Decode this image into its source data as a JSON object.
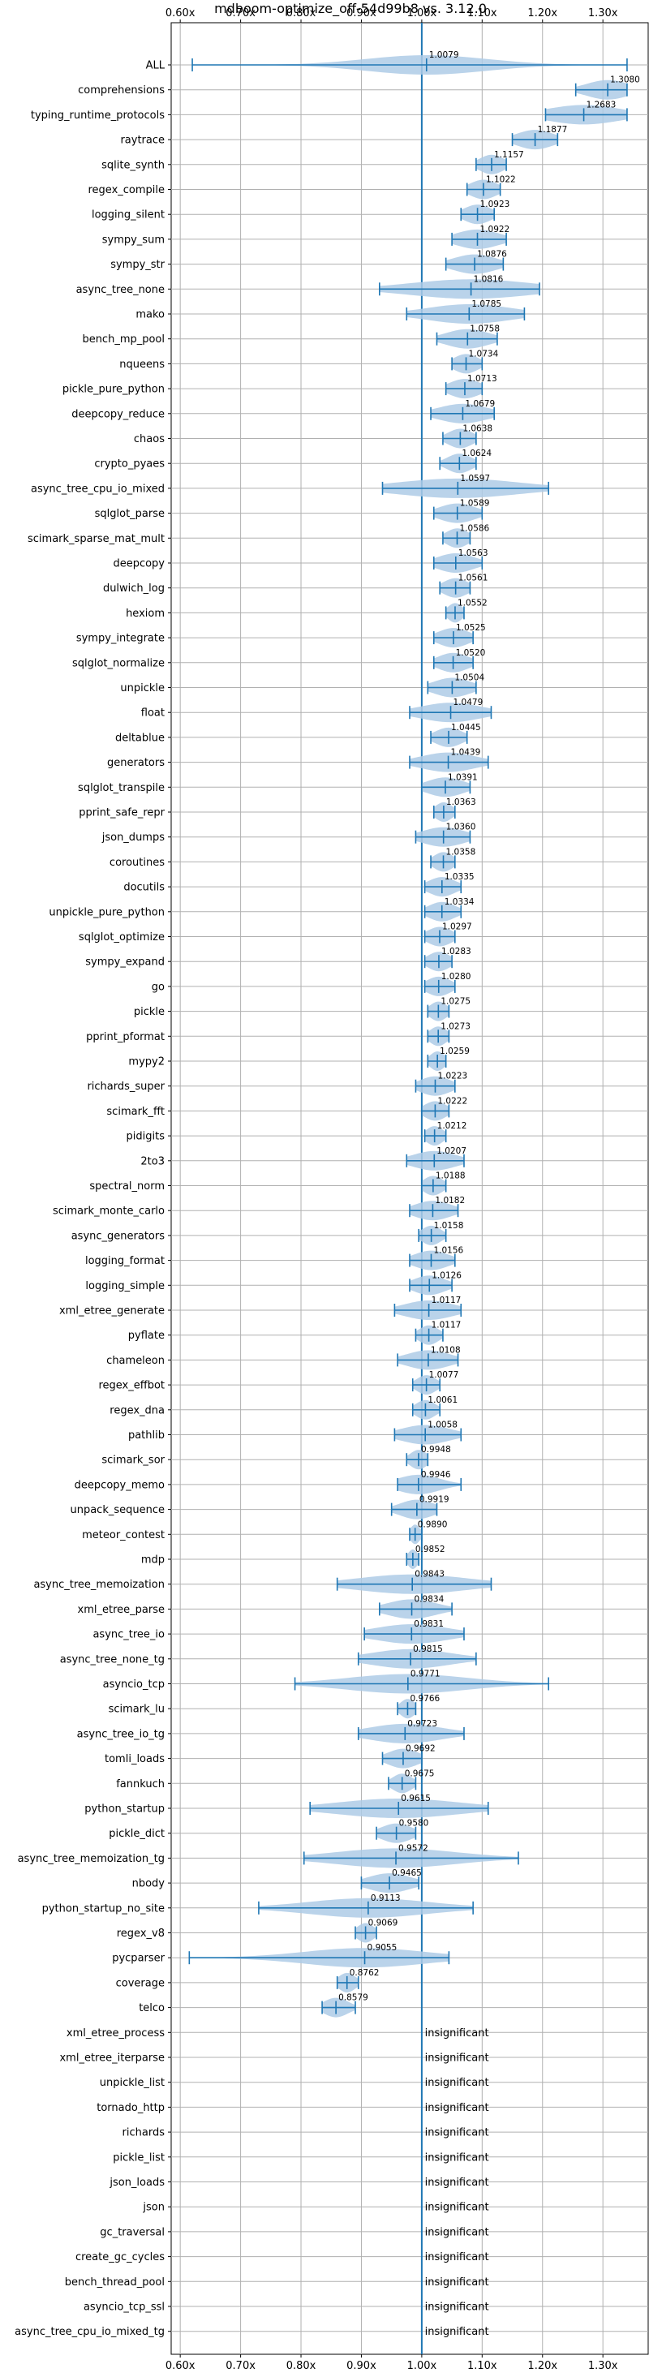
{
  "chart_data": {
    "type": "violin",
    "title": "mdboom-optimize_off-54d99b8 vs. 3.12.0",
    "xlim": [
      0.585,
      1.375
    ],
    "xticks": [
      0.6,
      0.7,
      0.8,
      0.9,
      1.0,
      1.1,
      1.2,
      1.3
    ],
    "xtick_labels": [
      "0.60x",
      "0.70x",
      "0.80x",
      "0.90x",
      "1.00x",
      "1.10x",
      "1.20x",
      "1.30x"
    ],
    "reference_line": 1.0,
    "grid": true,
    "colors": {
      "violin": "#aecbe6",
      "line": "#1f77b4",
      "grid": "#b0b0b0"
    },
    "insignificant_text": "insignificant",
    "benchmarks": [
      {
        "name": "ALL",
        "value": 1.0079,
        "label": "1.0079",
        "min": 0.62,
        "max": 1.34,
        "spread": 0.1
      },
      {
        "name": "comprehensions",
        "value": 1.308,
        "label": "1.3080",
        "min": 1.255,
        "max": 1.34,
        "spread": 0.035
      },
      {
        "name": "typing_runtime_protocols",
        "value": 1.2683,
        "label": "1.2683",
        "min": 1.205,
        "max": 1.34,
        "spread": 0.06
      },
      {
        "name": "raytrace",
        "value": 1.1877,
        "label": "1.1877",
        "min": 1.15,
        "max": 1.225,
        "spread": 0.03
      },
      {
        "name": "sqlite_synth",
        "value": 1.1157,
        "label": "1.1157",
        "min": 1.09,
        "max": 1.14,
        "spread": 0.02
      },
      {
        "name": "regex_compile",
        "value": 1.1022,
        "label": "1.1022",
        "min": 1.075,
        "max": 1.13,
        "spread": 0.022
      },
      {
        "name": "logging_silent",
        "value": 1.0923,
        "label": "1.0923",
        "min": 1.065,
        "max": 1.12,
        "spread": 0.022
      },
      {
        "name": "sympy_sum",
        "value": 1.0922,
        "label": "1.0922",
        "min": 1.05,
        "max": 1.14,
        "spread": 0.035
      },
      {
        "name": "sympy_str",
        "value": 1.0876,
        "label": "1.0876",
        "min": 1.04,
        "max": 1.135,
        "spread": 0.035
      },
      {
        "name": "async_tree_none",
        "value": 1.0816,
        "label": "1.0816",
        "min": 0.93,
        "max": 1.195,
        "spread": 0.1
      },
      {
        "name": "mako",
        "value": 1.0785,
        "label": "1.0785",
        "min": 0.975,
        "max": 1.17,
        "spread": 0.07
      },
      {
        "name": "bench_mp_pool",
        "value": 1.0758,
        "label": "1.0758",
        "min": 1.025,
        "max": 1.125,
        "spread": 0.035
      },
      {
        "name": "nqueens",
        "value": 1.0734,
        "label": "1.0734",
        "min": 1.05,
        "max": 1.1,
        "spread": 0.02
      },
      {
        "name": "pickle_pure_python",
        "value": 1.0713,
        "label": "1.0713",
        "min": 1.04,
        "max": 1.1,
        "spread": 0.025
      },
      {
        "name": "deepcopy_reduce",
        "value": 1.0679,
        "label": "1.0679",
        "min": 1.015,
        "max": 1.12,
        "spread": 0.04
      },
      {
        "name": "chaos",
        "value": 1.0638,
        "label": "1.0638",
        "min": 1.035,
        "max": 1.09,
        "spread": 0.02
      },
      {
        "name": "crypto_pyaes",
        "value": 1.0624,
        "label": "1.0624",
        "min": 1.03,
        "max": 1.09,
        "spread": 0.02
      },
      {
        "name": "async_tree_cpu_io_mixed",
        "value": 1.0597,
        "label": "1.0597",
        "min": 0.935,
        "max": 1.21,
        "spread": 0.1
      },
      {
        "name": "sqlglot_parse",
        "value": 1.0589,
        "label": "1.0589",
        "min": 1.02,
        "max": 1.1,
        "spread": 0.03
      },
      {
        "name": "scimark_sparse_mat_mult",
        "value": 1.0586,
        "label": "1.0586",
        "min": 1.035,
        "max": 1.08,
        "spread": 0.018
      },
      {
        "name": "deepcopy",
        "value": 1.0563,
        "label": "1.0563",
        "min": 1.02,
        "max": 1.1,
        "spread": 0.03
      },
      {
        "name": "dulwich_log",
        "value": 1.0561,
        "label": "1.0561",
        "min": 1.03,
        "max": 1.08,
        "spread": 0.02
      },
      {
        "name": "hexiom",
        "value": 1.0552,
        "label": "1.0552",
        "min": 1.04,
        "max": 1.07,
        "spread": 0.012
      },
      {
        "name": "sympy_integrate",
        "value": 1.0525,
        "label": "1.0525",
        "min": 1.02,
        "max": 1.085,
        "spread": 0.025
      },
      {
        "name": "sqlglot_normalize",
        "value": 1.052,
        "label": "1.0520",
        "min": 1.02,
        "max": 1.085,
        "spread": 0.025
      },
      {
        "name": "unpickle",
        "value": 1.0504,
        "label": "1.0504",
        "min": 1.01,
        "max": 1.09,
        "spread": 0.03
      },
      {
        "name": "float",
        "value": 1.0479,
        "label": "1.0479",
        "min": 0.98,
        "max": 1.115,
        "spread": 0.05
      },
      {
        "name": "deltablue",
        "value": 1.0445,
        "label": "1.0445",
        "min": 1.015,
        "max": 1.075,
        "spread": 0.022
      },
      {
        "name": "generators",
        "value": 1.0439,
        "label": "1.0439",
        "min": 0.98,
        "max": 1.11,
        "spread": 0.045
      },
      {
        "name": "sqlglot_transpile",
        "value": 1.0391,
        "label": "1.0391",
        "min": 1.0,
        "max": 1.08,
        "spread": 0.03
      },
      {
        "name": "pprint_safe_repr",
        "value": 1.0363,
        "label": "1.0363",
        "min": 1.02,
        "max": 1.055,
        "spread": 0.014
      },
      {
        "name": "json_dumps",
        "value": 1.036,
        "label": "1.0360",
        "min": 0.99,
        "max": 1.08,
        "spread": 0.035
      },
      {
        "name": "coroutines",
        "value": 1.0358,
        "label": "1.0358",
        "min": 1.015,
        "max": 1.055,
        "spread": 0.016
      },
      {
        "name": "docutils",
        "value": 1.0335,
        "label": "1.0335",
        "min": 1.005,
        "max": 1.065,
        "spread": 0.022
      },
      {
        "name": "unpickle_pure_python",
        "value": 1.0334,
        "label": "1.0334",
        "min": 1.005,
        "max": 1.065,
        "spread": 0.022
      },
      {
        "name": "sqlglot_optimize",
        "value": 1.0297,
        "label": "1.0297",
        "min": 1.005,
        "max": 1.055,
        "spread": 0.02
      },
      {
        "name": "sympy_expand",
        "value": 1.0283,
        "label": "1.0283",
        "min": 1.005,
        "max": 1.05,
        "spread": 0.018
      },
      {
        "name": "go",
        "value": 1.028,
        "label": "1.0280",
        "min": 1.005,
        "max": 1.055,
        "spread": 0.02
      },
      {
        "name": "pickle",
        "value": 1.0275,
        "label": "1.0275",
        "min": 1.01,
        "max": 1.045,
        "spread": 0.014
      },
      {
        "name": "pprint_pformat",
        "value": 1.0273,
        "label": "1.0273",
        "min": 1.01,
        "max": 1.045,
        "spread": 0.014
      },
      {
        "name": "mypy2",
        "value": 1.0259,
        "label": "1.0259",
        "min": 1.01,
        "max": 1.04,
        "spread": 0.012
      },
      {
        "name": "richards_super",
        "value": 1.0223,
        "label": "1.0223",
        "min": 0.99,
        "max": 1.055,
        "spread": 0.025
      },
      {
        "name": "scimark_fft",
        "value": 1.0222,
        "label": "1.0222",
        "min": 1.0,
        "max": 1.045,
        "spread": 0.018
      },
      {
        "name": "pidigits",
        "value": 1.0212,
        "label": "1.0212",
        "min": 1.005,
        "max": 1.04,
        "spread": 0.014
      },
      {
        "name": "2to3",
        "value": 1.0207,
        "label": "1.0207",
        "min": 0.975,
        "max": 1.07,
        "spread": 0.035
      },
      {
        "name": "spectral_norm",
        "value": 1.0188,
        "label": "1.0188",
        "min": 1.0,
        "max": 1.04,
        "spread": 0.016
      },
      {
        "name": "scimark_monte_carlo",
        "value": 1.0182,
        "label": "1.0182",
        "min": 0.98,
        "max": 1.06,
        "spread": 0.03
      },
      {
        "name": "async_generators",
        "value": 1.0158,
        "label": "1.0158",
        "min": 0.995,
        "max": 1.04,
        "spread": 0.016
      },
      {
        "name": "logging_format",
        "value": 1.0156,
        "label": "1.0156",
        "min": 0.98,
        "max": 1.055,
        "spread": 0.028
      },
      {
        "name": "logging_simple",
        "value": 1.0126,
        "label": "1.0126",
        "min": 0.98,
        "max": 1.05,
        "spread": 0.026
      },
      {
        "name": "xml_etree_generate",
        "value": 1.0117,
        "label": "1.0117",
        "min": 0.955,
        "max": 1.065,
        "spread": 0.04
      },
      {
        "name": "pyflate",
        "value": 1.0117,
        "label": "1.0117",
        "min": 0.99,
        "max": 1.035,
        "spread": 0.016
      },
      {
        "name": "chameleon",
        "value": 1.0108,
        "label": "1.0108",
        "min": 0.96,
        "max": 1.06,
        "spread": 0.035
      },
      {
        "name": "regex_effbot",
        "value": 1.0077,
        "label": "1.0077",
        "min": 0.985,
        "max": 1.03,
        "spread": 0.016
      },
      {
        "name": "regex_dna",
        "value": 1.0061,
        "label": "1.0061",
        "min": 0.985,
        "max": 1.03,
        "spread": 0.016
      },
      {
        "name": "pathlib",
        "value": 1.0058,
        "label": "1.0058",
        "min": 0.955,
        "max": 1.065,
        "spread": 0.04
      },
      {
        "name": "scimark_sor",
        "value": 0.9948,
        "label": "0.9948",
        "min": 0.975,
        "max": 1.01,
        "spread": 0.014
      },
      {
        "name": "deepcopy_memo",
        "value": 0.9946,
        "label": "0.9946",
        "min": 0.96,
        "max": 1.065,
        "spread": 0.035
      },
      {
        "name": "unpack_sequence",
        "value": 0.9919,
        "label": "0.9919",
        "min": 0.95,
        "max": 1.025,
        "spread": 0.028
      },
      {
        "name": "meteor_contest",
        "value": 0.989,
        "label": "0.9890",
        "min": 0.98,
        "max": 1.0,
        "spread": 0.008
      },
      {
        "name": "mdp",
        "value": 0.9852,
        "label": "0.9852",
        "min": 0.975,
        "max": 0.995,
        "spread": 0.008
      },
      {
        "name": "async_tree_memoization",
        "value": 0.9843,
        "label": "0.9843",
        "min": 0.86,
        "max": 1.115,
        "spread": 0.09
      },
      {
        "name": "xml_etree_parse",
        "value": 0.9834,
        "label": "0.9834",
        "min": 0.93,
        "max": 1.05,
        "spread": 0.04
      },
      {
        "name": "async_tree_io",
        "value": 0.9831,
        "label": "0.9831",
        "min": 0.905,
        "max": 1.07,
        "spread": 0.06
      },
      {
        "name": "async_tree_none_tg",
        "value": 0.9815,
        "label": "0.9815",
        "min": 0.895,
        "max": 1.09,
        "spread": 0.065
      },
      {
        "name": "asyncio_tcp",
        "value": 0.9771,
        "label": "0.9771",
        "min": 0.79,
        "max": 1.21,
        "spread": 0.1
      },
      {
        "name": "scimark_lu",
        "value": 0.9766,
        "label": "0.9766",
        "min": 0.96,
        "max": 0.99,
        "spread": 0.012
      },
      {
        "name": "async_tree_io_tg",
        "value": 0.9723,
        "label": "0.9723",
        "min": 0.895,
        "max": 1.07,
        "spread": 0.06
      },
      {
        "name": "tomli_loads",
        "value": 0.9692,
        "label": "0.9692",
        "min": 0.935,
        "max": 1.0,
        "spread": 0.025
      },
      {
        "name": "fannkuch",
        "value": 0.9675,
        "label": "0.9675",
        "min": 0.945,
        "max": 0.99,
        "spread": 0.016
      },
      {
        "name": "python_startup",
        "value": 0.9615,
        "label": "0.9615",
        "min": 0.815,
        "max": 1.11,
        "spread": 0.1
      },
      {
        "name": "pickle_dict",
        "value": 0.958,
        "label": "0.9580",
        "min": 0.925,
        "max": 0.99,
        "spread": 0.025
      },
      {
        "name": "async_tree_memoization_tg",
        "value": 0.9572,
        "label": "0.9572",
        "min": 0.805,
        "max": 1.16,
        "spread": 0.1
      },
      {
        "name": "nbody",
        "value": 0.9465,
        "label": "0.9465",
        "min": 0.9,
        "max": 0.995,
        "spread": 0.035
      },
      {
        "name": "python_startup_no_site",
        "value": 0.9113,
        "label": "0.9113",
        "min": 0.73,
        "max": 1.085,
        "spread": 0.1
      },
      {
        "name": "regex_v8",
        "value": 0.9069,
        "label": "0.9069",
        "min": 0.89,
        "max": 0.925,
        "spread": 0.014
      },
      {
        "name": "pycparser",
        "value": 0.9055,
        "label": "0.9055",
        "min": 0.615,
        "max": 1.045,
        "spread": 0.1
      },
      {
        "name": "coverage",
        "value": 0.8762,
        "label": "0.8762",
        "min": 0.86,
        "max": 0.895,
        "spread": 0.014
      },
      {
        "name": "telco",
        "value": 0.8579,
        "label": "0.8579",
        "min": 0.835,
        "max": 0.89,
        "spread": 0.02
      },
      {
        "name": "xml_etree_process",
        "insignificant": true
      },
      {
        "name": "xml_etree_iterparse",
        "insignificant": true
      },
      {
        "name": "unpickle_list",
        "insignificant": true
      },
      {
        "name": "tornado_http",
        "insignificant": true
      },
      {
        "name": "richards",
        "insignificant": true
      },
      {
        "name": "pickle_list",
        "insignificant": true
      },
      {
        "name": "json_loads",
        "insignificant": true
      },
      {
        "name": "json",
        "insignificant": true
      },
      {
        "name": "gc_traversal",
        "insignificant": true
      },
      {
        "name": "create_gc_cycles",
        "insignificant": true
      },
      {
        "name": "bench_thread_pool",
        "insignificant": true
      },
      {
        "name": "asyncio_tcp_ssl",
        "insignificant": true
      },
      {
        "name": "async_tree_cpu_io_mixed_tg",
        "insignificant": true
      }
    ]
  }
}
